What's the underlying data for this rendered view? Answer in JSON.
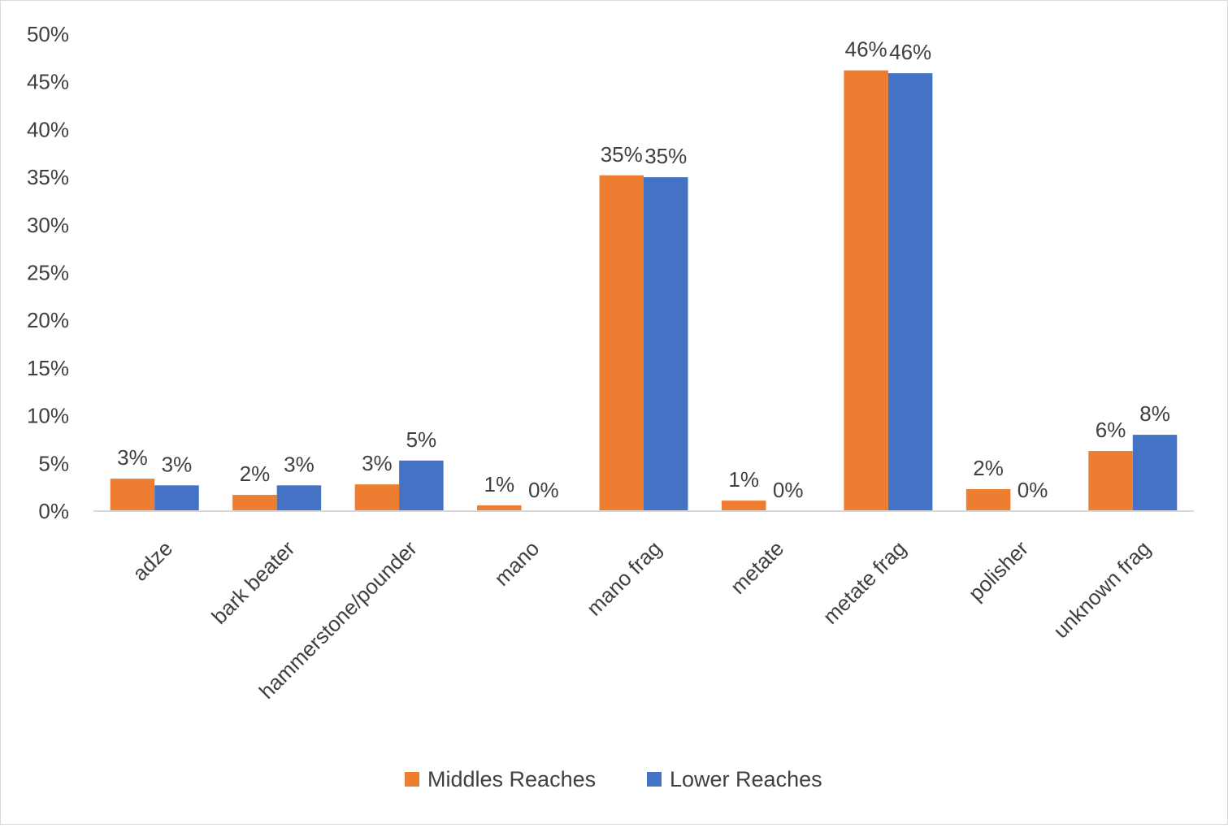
{
  "chart_data": {
    "type": "bar",
    "title": "",
    "xlabel": "",
    "ylabel": "",
    "ylim": [
      0,
      50
    ],
    "y_ticks": [
      "0%",
      "5%",
      "10%",
      "15%",
      "20%",
      "25%",
      "30%",
      "35%",
      "40%",
      "45%",
      "50%"
    ],
    "categories": [
      "adze",
      "bark beater",
      "hammerstone/pounder",
      "mano",
      "mano frag",
      "metate",
      "metate frag",
      "polisher",
      "unknown frag"
    ],
    "series": [
      {
        "name": "Middles Reaches",
        "color": "#ed7d31",
        "values": [
          3.4,
          1.7,
          2.8,
          0.6,
          35.2,
          1.1,
          46.2,
          2.3,
          6.3
        ],
        "labels": [
          "3%",
          "2%",
          "3%",
          "1%",
          "35%",
          "1%",
          "46%",
          "2%",
          "6%"
        ]
      },
      {
        "name": "Lower Reaches",
        "color": "#4472c4",
        "values": [
          2.7,
          2.7,
          5.3,
          0,
          35.0,
          0,
          45.9,
          0,
          8.0
        ],
        "labels": [
          "3%",
          "3%",
          "5%",
          "0%",
          "35%",
          "0%",
          "46%",
          "0%",
          "8%"
        ]
      }
    ],
    "legend": "bottom",
    "grid": false
  }
}
